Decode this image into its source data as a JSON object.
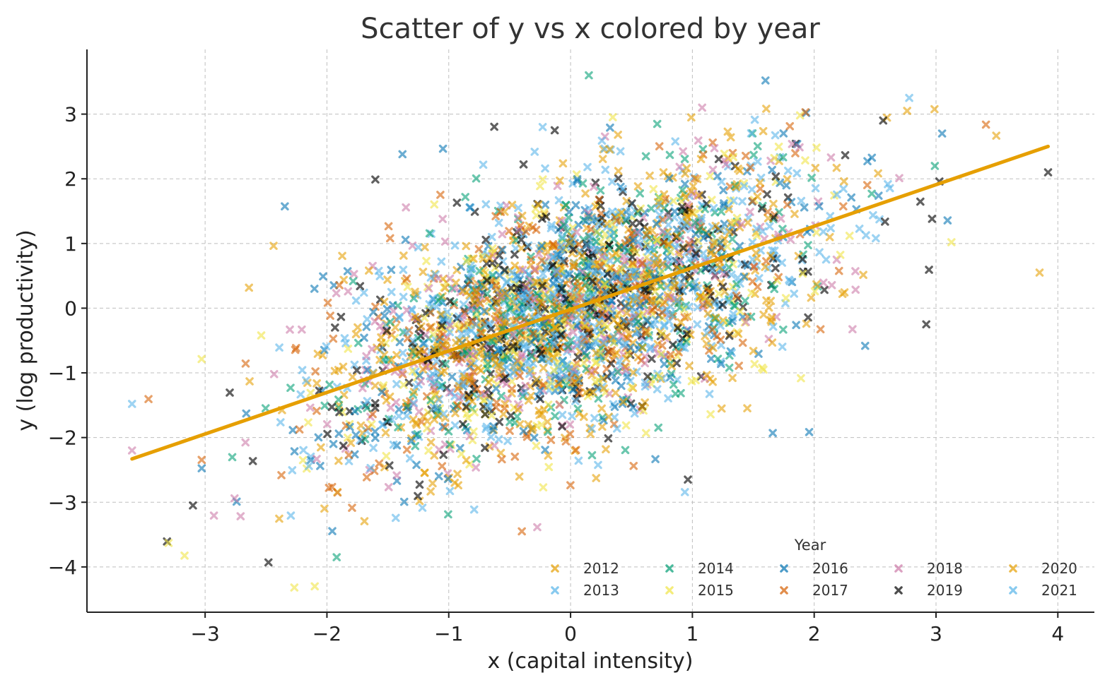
{
  "chart_data": {
    "type": "scatter",
    "title": "Scatter of y vs x colored by year",
    "xlabel": "x (capital intensity)",
    "ylabel": "y (log productivity)",
    "xlim": [
      -3.97,
      4.3
    ],
    "ylim": [
      -4.7,
      4.0
    ],
    "xticks": [
      -3,
      -2,
      -1,
      0,
      1,
      2,
      3,
      4
    ],
    "yticks": [
      -4,
      -3,
      -2,
      -1,
      0,
      1,
      2,
      3
    ],
    "grid": true,
    "marker": "x",
    "legend": {
      "title": "Year",
      "placement": "lower-right",
      "columns": 5
    },
    "series": [
      {
        "name": "2012",
        "color": "#E69F00",
        "approx_points": 300
      },
      {
        "name": "2013",
        "color": "#56B4E9",
        "approx_points": 300
      },
      {
        "name": "2014",
        "color": "#009E73",
        "approx_points": 300
      },
      {
        "name": "2015",
        "color": "#F0E442",
        "approx_points": 300
      },
      {
        "name": "2016",
        "color": "#0072B2",
        "approx_points": 300
      },
      {
        "name": "2017",
        "color": "#D55E00",
        "approx_points": 300
      },
      {
        "name": "2018",
        "color": "#CC79A7",
        "approx_points": 300
      },
      {
        "name": "2019",
        "color": "#000000",
        "approx_points": 300
      },
      {
        "name": "2020",
        "color": "#E69F00",
        "approx_points": 300
      },
      {
        "name": "2021",
        "color": "#56B4E9",
        "approx_points": 300
      }
    ],
    "distribution": {
      "x_mean": 0.0,
      "x_sd": 1.0,
      "noise_sd": 0.95,
      "slope": 0.64,
      "intercept": 0.0
    },
    "sample_points": [
      {
        "x": 0.15,
        "y": 3.6,
        "series": "2014"
      },
      {
        "x": 1.6,
        "y": 3.52,
        "series": "2016"
      },
      {
        "x": 2.78,
        "y": 3.25,
        "series": "2021"
      },
      {
        "x": 3.05,
        "y": 2.7,
        "series": "2016"
      },
      {
        "x": 3.92,
        "y": 2.1,
        "series": "2019"
      },
      {
        "x": 3.85,
        "y": 0.55,
        "series": "2020"
      },
      {
        "x": 2.92,
        "y": -0.25,
        "series": "2019"
      },
      {
        "x": -3.6,
        "y": -1.48,
        "series": "2021"
      },
      {
        "x": -3.6,
        "y": -2.2,
        "series": "2018"
      },
      {
        "x": -3.3,
        "y": -3.63,
        "series": "2015"
      },
      {
        "x": -3.1,
        "y": -3.05,
        "series": "2019"
      },
      {
        "x": -2.48,
        "y": -3.93,
        "series": "2019"
      },
      {
        "x": -2.1,
        "y": -4.3,
        "series": "2015"
      },
      {
        "x": -1.92,
        "y": -3.85,
        "series": "2014"
      },
      {
        "x": -1.38,
        "y": 2.38,
        "series": "2016"
      },
      {
        "x": -0.13,
        "y": 2.75,
        "series": "2019"
      },
      {
        "x": 1.08,
        "y": 3.1,
        "series": "2018"
      },
      {
        "x": 1.66,
        "y": -1.93,
        "series": "2016"
      },
      {
        "x": -0.4,
        "y": -3.45,
        "series": "2017"
      }
    ],
    "fit_line": {
      "color": "#E69F00",
      "x": [
        -3.6,
        3.92
      ],
      "y": [
        -2.33,
        2.5
      ]
    }
  }
}
